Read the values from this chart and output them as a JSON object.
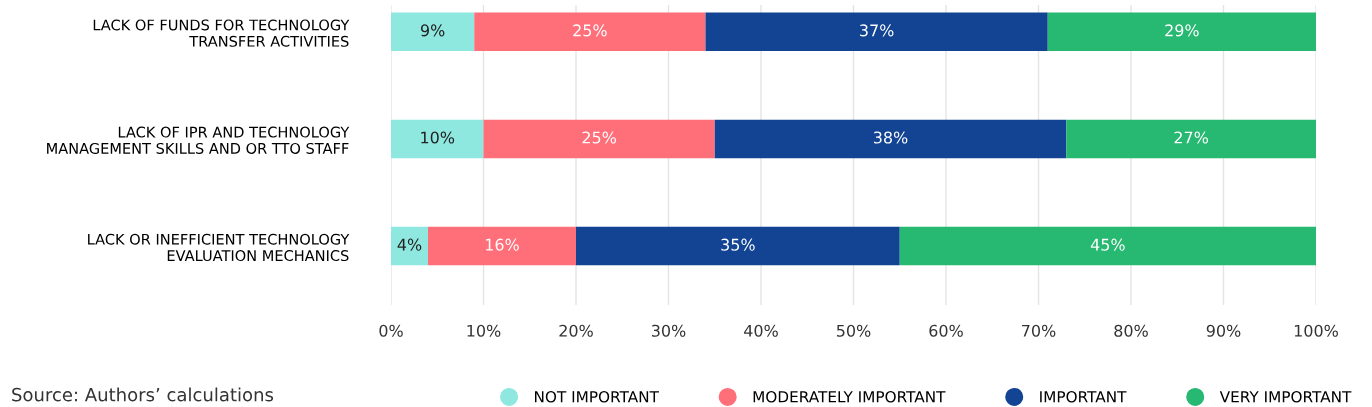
{
  "chart_data": {
    "type": "bar",
    "orientation": "horizontal",
    "stacked": true,
    "categories": [
      "LACK OF FUNDS FOR TECHNOLOGY\nTRANSFER ACTIVITIES",
      "LACK OF IPR AND TECHNOLOGY\nMANAGEMENT SKILLS AND OR TTO STAFF",
      "LACK OR INEFFICIENT TECHNOLOGY\nEVALUATION MECHANICS"
    ],
    "series": [
      {
        "name": "NOT IMPORTANT",
        "color": "#8ee8e0",
        "values": [
          9,
          10,
          4
        ],
        "value_labels": [
          "9%",
          "10%",
          "4%"
        ]
      },
      {
        "name": "MODERATELY IMPORTANT",
        "color": "#ff6f7a",
        "values": [
          25,
          25,
          16
        ],
        "value_labels": [
          "25%",
          "25%",
          "16%"
        ]
      },
      {
        "name": "IMPORTANT",
        "color": "#134494",
        "values": [
          37,
          38,
          35
        ],
        "value_labels": [
          "37%",
          "38%",
          "35%"
        ]
      },
      {
        "name": "VERY IMPORTANT",
        "color": "#27b872",
        "values": [
          29,
          27,
          45
        ],
        "value_labels": [
          "29%",
          "27%",
          "45%"
        ]
      }
    ],
    "xlim": [
      0,
      100
    ],
    "xticks": [
      {
        "value": 0,
        "label": "0%"
      },
      {
        "value": 10,
        "label": "10%"
      },
      {
        "value": 20,
        "label": "20%"
      },
      {
        "value": 30,
        "label": "30%"
      },
      {
        "value": 40,
        "label": "40%"
      },
      {
        "value": 50,
        "label": "50%"
      },
      {
        "value": 60,
        "label": "60%"
      },
      {
        "value": 70,
        "label": "70%"
      },
      {
        "value": 80,
        "label": "80%"
      },
      {
        "value": 90,
        "label": "90%"
      },
      {
        "value": 100,
        "label": "100%"
      }
    ],
    "grid": "x",
    "legend": "bottom right",
    "marker": "circle",
    "annotations": [
      "Source: Authors’ calculations"
    ]
  }
}
